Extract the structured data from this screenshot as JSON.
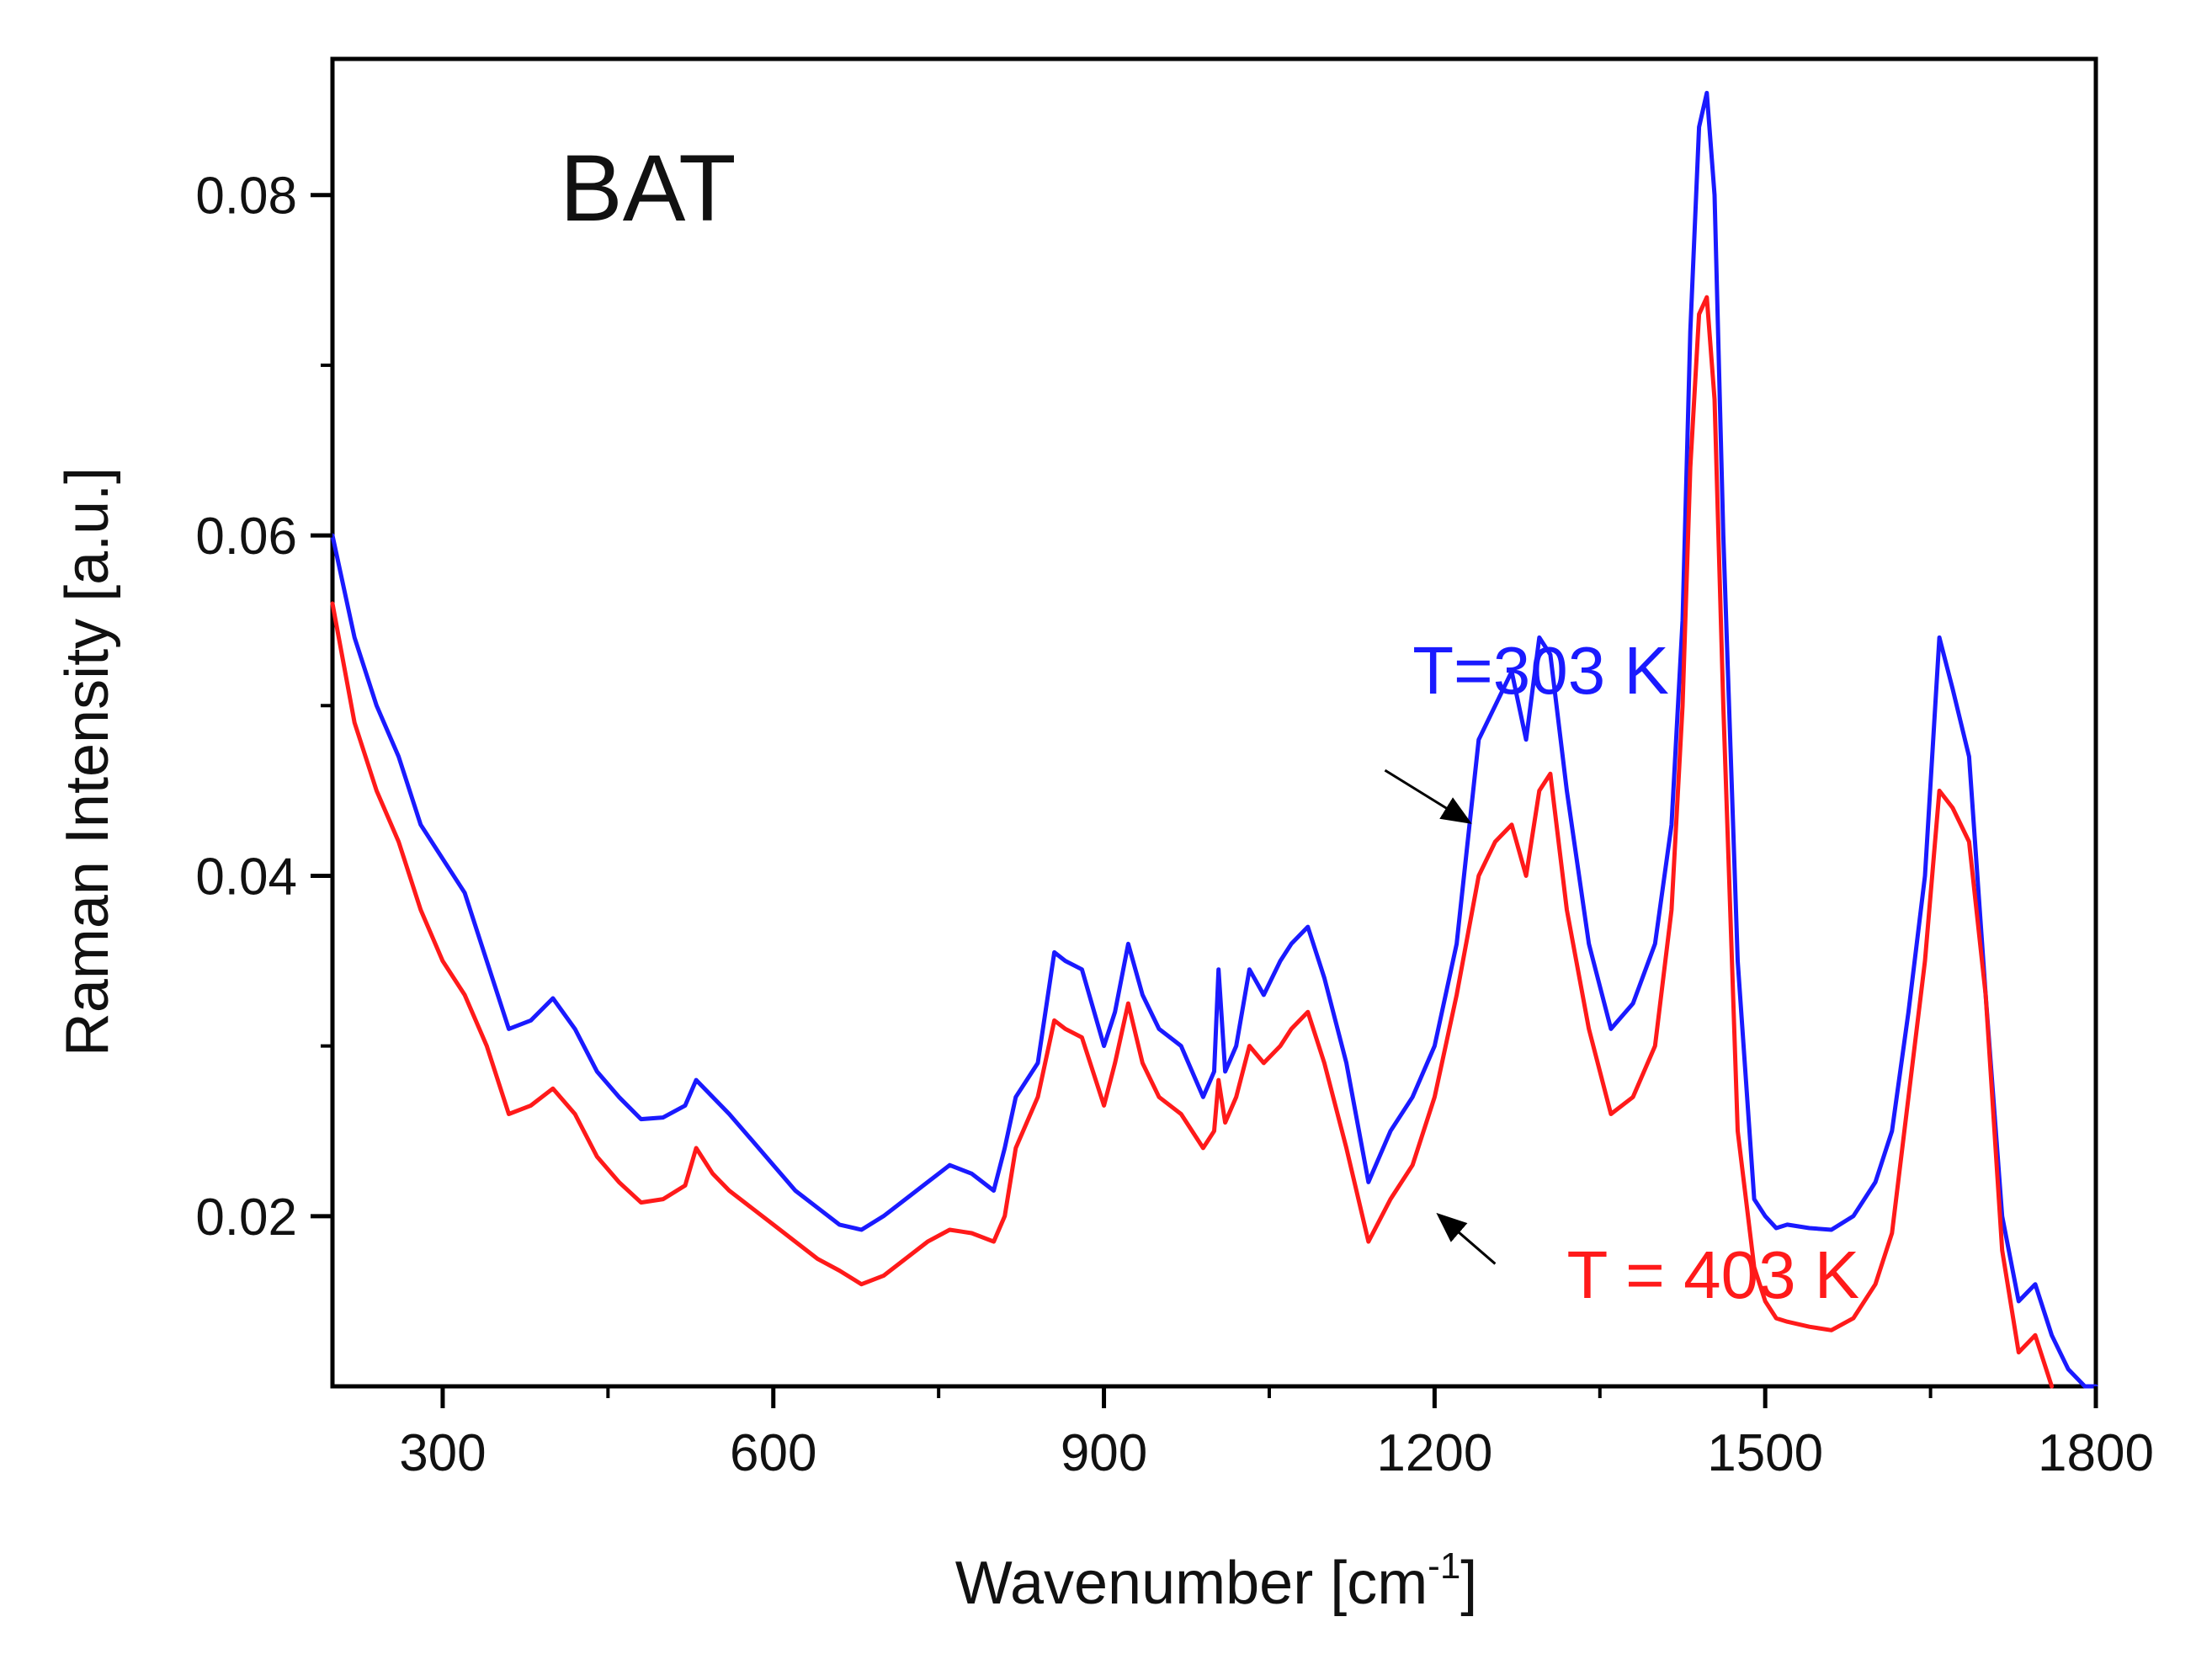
{
  "chart_data": {
    "type": "line",
    "title": "BAT",
    "xlabel": "Wavenumber [cm",
    "xlabel_sup": "-1",
    "xlabel_end": "]",
    "ylabel": "Raman Intensity [a.u.]",
    "xlim": [
      200,
      1800
    ],
    "ylim": [
      0.01,
      0.088
    ],
    "x_ticks": [
      300,
      600,
      900,
      1200,
      1500,
      1800
    ],
    "x_minor_ticks": [
      450,
      750,
      1050,
      1350,
      1650
    ],
    "y_ticks": [
      0.02,
      0.04,
      0.06,
      0.08
    ],
    "y_tick_labels": [
      "0.02",
      "0.04",
      "0.06",
      "0.08"
    ],
    "y_minor_ticks": [
      0.03,
      0.05,
      0.07
    ],
    "grid": false,
    "colors": {
      "T303": "#1a1aff",
      "T403": "#ff1a1a",
      "axis": "#000000"
    },
    "series": [
      {
        "name": "T=303 K",
        "color": "#1a1aff",
        "x": [
          200,
          220,
          240,
          260,
          280,
          300,
          320,
          340,
          360,
          380,
          400,
          420,
          440,
          460,
          480,
          500,
          520,
          530,
          545,
          560,
          580,
          600,
          620,
          640,
          660,
          680,
          700,
          720,
          740,
          760,
          780,
          800,
          810,
          820,
          840,
          855,
          865,
          880,
          900,
          910,
          922,
          935,
          950,
          970,
          990,
          1000,
          1004,
          1010,
          1020,
          1032,
          1045,
          1060,
          1070,
          1085,
          1100,
          1120,
          1140,
          1160,
          1180,
          1200,
          1220,
          1240,
          1255,
          1270,
          1283,
          1295,
          1305,
          1320,
          1340,
          1360,
          1380,
          1400,
          1415,
          1425,
          1432,
          1440,
          1447,
          1454,
          1462,
          1475,
          1490,
          1500,
          1510,
          1520,
          1540,
          1560,
          1580,
          1600,
          1615,
          1630,
          1645,
          1658,
          1670,
          1685,
          1700,
          1715,
          1730,
          1745,
          1760,
          1775,
          1790,
          1800
        ],
        "y": [
          0.06,
          0.054,
          0.05,
          0.047,
          0.043,
          0.041,
          0.039,
          0.035,
          0.031,
          0.0315,
          0.0328,
          0.031,
          0.0285,
          0.027,
          0.0257,
          0.0258,
          0.0265,
          0.028,
          0.027,
          0.026,
          0.0245,
          0.023,
          0.0215,
          0.0205,
          0.0195,
          0.0192,
          0.02,
          0.021,
          0.022,
          0.023,
          0.0225,
          0.0215,
          0.024,
          0.027,
          0.029,
          0.0355,
          0.035,
          0.0345,
          0.03,
          0.032,
          0.036,
          0.033,
          0.031,
          0.03,
          0.027,
          0.0285,
          0.0345,
          0.0285,
          0.03,
          0.0345,
          0.033,
          0.035,
          0.036,
          0.037,
          0.034,
          0.029,
          0.022,
          0.025,
          0.027,
          0.03,
          0.036,
          0.048,
          0.05,
          0.052,
          0.048,
          0.054,
          0.053,
          0.045,
          0.036,
          0.031,
          0.0325,
          0.036,
          0.043,
          0.055,
          0.072,
          0.084,
          0.086,
          0.08,
          0.06,
          0.035,
          0.021,
          0.02,
          0.0193,
          0.0195,
          0.0193,
          0.0192,
          0.02,
          0.022,
          0.025,
          0.032,
          0.04,
          0.054,
          0.051,
          0.047,
          0.033,
          0.02,
          0.015,
          0.016,
          0.013,
          0.011,
          0.01,
          0.01
        ]
      },
      {
        "name": "T = 403 K",
        "color": "#ff1a1a",
        "x": [
          200,
          220,
          240,
          260,
          280,
          300,
          320,
          340,
          360,
          380,
          400,
          420,
          440,
          460,
          480,
          500,
          520,
          530,
          545,
          560,
          580,
          600,
          620,
          640,
          660,
          680,
          700,
          720,
          740,
          760,
          780,
          800,
          810,
          820,
          840,
          855,
          865,
          880,
          900,
          910,
          922,
          935,
          950,
          970,
          990,
          1000,
          1004,
          1010,
          1020,
          1032,
          1045,
          1060,
          1070,
          1085,
          1100,
          1120,
          1140,
          1160,
          1180,
          1200,
          1220,
          1240,
          1255,
          1270,
          1283,
          1295,
          1305,
          1320,
          1340,
          1360,
          1380,
          1400,
          1415,
          1425,
          1432,
          1440,
          1447,
          1454,
          1462,
          1475,
          1490,
          1500,
          1510,
          1520,
          1540,
          1560,
          1580,
          1600,
          1615,
          1630,
          1645,
          1658,
          1670,
          1685,
          1700,
          1715,
          1730,
          1745,
          1760
        ],
        "y": [
          0.056,
          0.049,
          0.045,
          0.042,
          0.038,
          0.035,
          0.033,
          0.03,
          0.026,
          0.0265,
          0.0275,
          0.026,
          0.0235,
          0.022,
          0.0208,
          0.021,
          0.0218,
          0.024,
          0.0225,
          0.0215,
          0.0205,
          0.0195,
          0.0185,
          0.0175,
          0.0168,
          0.016,
          0.0165,
          0.0175,
          0.0185,
          0.0192,
          0.019,
          0.0185,
          0.02,
          0.024,
          0.027,
          0.0315,
          0.031,
          0.0305,
          0.0265,
          0.029,
          0.0325,
          0.029,
          0.027,
          0.026,
          0.024,
          0.025,
          0.028,
          0.0255,
          0.027,
          0.03,
          0.029,
          0.03,
          0.031,
          0.032,
          0.029,
          0.024,
          0.0185,
          0.021,
          0.023,
          0.027,
          0.033,
          0.04,
          0.042,
          0.043,
          0.04,
          0.045,
          0.046,
          0.038,
          0.031,
          0.026,
          0.027,
          0.03,
          0.038,
          0.05,
          0.064,
          0.073,
          0.074,
          0.068,
          0.05,
          0.025,
          0.017,
          0.015,
          0.014,
          0.0138,
          0.0135,
          0.0133,
          0.014,
          0.016,
          0.019,
          0.027,
          0.035,
          0.045,
          0.044,
          0.042,
          0.033,
          0.018,
          0.012,
          0.013,
          0.01
        ]
      }
    ],
    "annotations": [
      {
        "text": "T=303 K",
        "color": "#1a1aff",
        "text_x": 1180,
        "text_y": 0.0507,
        "arrow_from_x": 1155,
        "arrow_from_y": 0.0462,
        "arrow_to_x": 1230,
        "arrow_to_y": 0.0432
      },
      {
        "text": "T = 403 K",
        "color": "#ff1a1a",
        "text_x": 1320,
        "text_y": 0.0152,
        "arrow_from_x": 1255,
        "arrow_from_y": 0.0172,
        "arrow_to_x": 1205,
        "arrow_to_y": 0.02
      }
    ]
  }
}
